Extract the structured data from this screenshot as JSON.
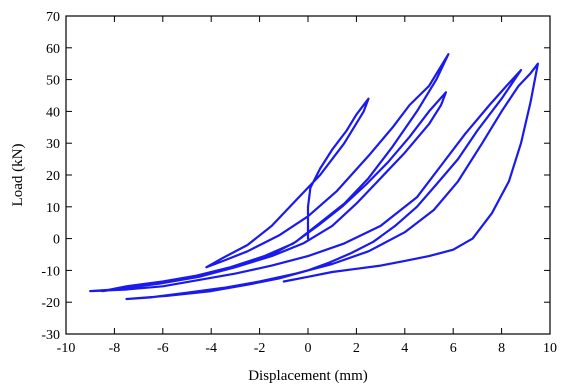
{
  "chart_data": {
    "type": "line",
    "title": "",
    "xlabel": "Displacement (mm)",
    "ylabel": "Load (kN)",
    "xlim": [
      -10,
      10
    ],
    "ylim": [
      -30,
      70
    ],
    "xticks": [
      -10,
      -8,
      -6,
      -4,
      -2,
      0,
      2,
      4,
      6,
      8,
      10
    ],
    "yticks": [
      -30,
      -20,
      -10,
      0,
      10,
      20,
      30,
      40,
      50,
      60,
      70
    ],
    "grid": false,
    "legend": "none",
    "series": [
      {
        "color": "#1a1aee",
        "x": [
          0.0,
          0.0,
          0.1,
          0.5,
          1.0,
          1.6,
          2.0,
          2.5,
          2.3,
          1.5,
          0.5,
          -0.5,
          -1.5,
          -2.5,
          -3.5,
          -4.2,
          -3.5,
          -2.5,
          -1.2,
          0.0,
          1.2,
          2.5,
          3.5,
          4.2,
          5.0,
          5.4,
          5.8,
          5.3,
          4.5,
          3.5,
          2.5,
          1.5,
          0.5,
          -0.5,
          -1.5,
          -3.0,
          -4.5,
          -6.0,
          -7.5,
          -8.5,
          -7.5,
          -6.0,
          -4.5,
          -3.0,
          -1.5,
          -0.2,
          1.0,
          2.0,
          3.0,
          4.0,
          5.0,
          5.5,
          5.7,
          5.0,
          4.2,
          3.3,
          2.4,
          1.4,
          0.4,
          -0.6,
          -1.8,
          -3.2,
          -4.8,
          -6.5,
          -8.0,
          -9.0,
          -7.5,
          -6.0,
          -4.5,
          -3.0,
          -1.5,
          0.0,
          1.5,
          3.0,
          4.5,
          5.5,
          6.5,
          7.5,
          8.2,
          8.8,
          8.0,
          7.0,
          6.2,
          5.3,
          4.5,
          3.6,
          2.7,
          1.8,
          0.9,
          0.0,
          -1.2,
          -2.5,
          -4.0,
          -5.8,
          -7.5,
          -6.5,
          -5.0,
          -3.5,
          -2.0,
          -0.5,
          1.0,
          2.5,
          4.0,
          5.2,
          6.2,
          7.2,
          8.0,
          8.7,
          9.2,
          9.5,
          9.2,
          8.8,
          8.3,
          7.6,
          6.8,
          6.0,
          5.0,
          4.0,
          3.0,
          2.0,
          1.0,
          0.0,
          -1.0
        ],
        "y": [
          0.0,
          10.0,
          16.0,
          22.0,
          28.0,
          34.0,
          39.0,
          44.0,
          40.0,
          30.0,
          20.0,
          12.0,
          4.0,
          -2.0,
          -6.0,
          -9.0,
          -7.0,
          -4.0,
          1.0,
          7.0,
          15.0,
          26.0,
          35.0,
          42.0,
          48.0,
          53.0,
          58.0,
          50.0,
          40.0,
          29.0,
          19.0,
          11.0,
          5.0,
          -1.0,
          -5.0,
          -9.0,
          -12.0,
          -14.0,
          -15.5,
          -16.5,
          -15.0,
          -13.5,
          -11.5,
          -9.0,
          -5.5,
          -1.5,
          4.0,
          11.0,
          19.0,
          27.0,
          36.0,
          42.0,
          46.0,
          40.0,
          32.0,
          24.0,
          17.0,
          10.0,
          4.0,
          -1.5,
          -5.5,
          -9.0,
          -12.0,
          -14.5,
          -16.0,
          -16.5,
          -16.0,
          -15.0,
          -13.0,
          -11.0,
          -8.5,
          -5.5,
          -1.5,
          4.0,
          13.0,
          23.0,
          33.0,
          42.0,
          48.0,
          53.0,
          44.0,
          34.0,
          25.0,
          17.0,
          10.0,
          4.0,
          -1.0,
          -4.5,
          -7.5,
          -10.0,
          -12.5,
          -14.5,
          -16.5,
          -18.0,
          -19.0,
          -18.5,
          -17.0,
          -15.5,
          -13.5,
          -11.0,
          -8.0,
          -4.0,
          2.0,
          9.0,
          18.0,
          30.0,
          40.0,
          48.0,
          52.0,
          55.0,
          43.0,
          30.0,
          18.0,
          8.0,
          0.0,
          -3.5,
          -5.5,
          -7.0,
          -8.5,
          -9.5,
          -10.5,
          -12.0,
          -13.5
        ]
      }
    ]
  }
}
